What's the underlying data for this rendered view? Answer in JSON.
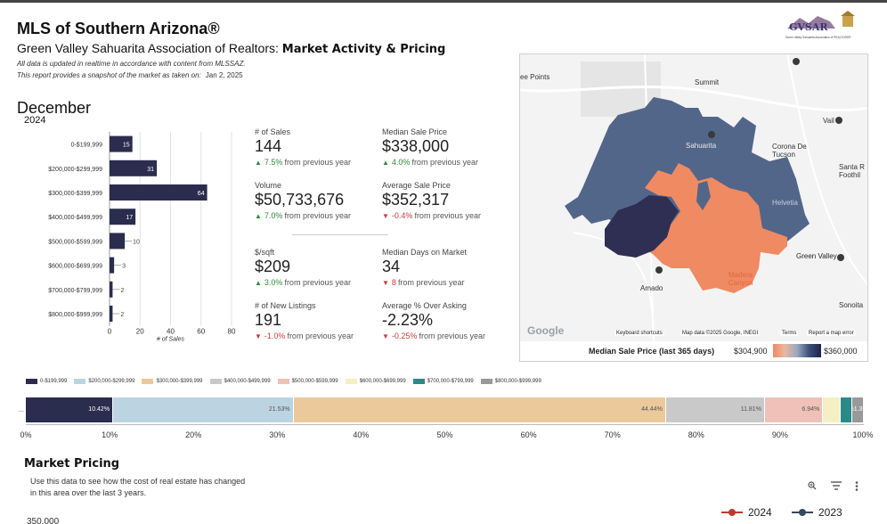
{
  "header": {
    "title": "MLS of Southern Arizona®",
    "subtitle_plain": "Green Valley Sahuarita Association of Realtors: ",
    "subtitle_bold": "Market Activity & Pricing",
    "note1": "All data is updated in realtime in accordance with content from MLSSAZ.",
    "note2": "This report provides a snapshot of the market as taken on:",
    "snapshot_date": "Jan 2, 2025",
    "logo_text": "GVSAR",
    "logo_subtext": "Green Valley Sahuarita Association of REALTORS®"
  },
  "period": {
    "month": "December",
    "year": "2024"
  },
  "chart_data": [
    {
      "type": "bar",
      "orientation": "horizontal",
      "categories": [
        "0-$199,999",
        "$200,000-$299,999",
        "$300,000-$399,999",
        "$400,000-$499,999",
        "$500,000-$599,999",
        "$600,000-$699,999",
        "$700,000-$799,999",
        "$800,000-$999,999"
      ],
      "values": [
        15,
        31,
        64,
        17,
        10,
        3,
        2,
        2
      ],
      "xlabel": "# of Sales",
      "xlim": [
        0,
        80
      ],
      "xticks": [
        0,
        20,
        40,
        60,
        80
      ],
      "color": "#2b2d4e",
      "grid": true
    },
    {
      "type": "bar",
      "orientation": "horizontal-stacked-100",
      "categories": [
        "..."
      ],
      "series": [
        {
          "name": "0-$199,999",
          "values": [
            10.42
          ],
          "label": "10.42%",
          "color": "#2b2d4e"
        },
        {
          "name": "$200,000-$299,999",
          "values": [
            21.53
          ],
          "label": "21.53%",
          "color": "#bcd3e2"
        },
        {
          "name": "$300,000-$399,999",
          "values": [
            44.44
          ],
          "label": "44.44%",
          "color": "#ecc99b"
        },
        {
          "name": "$400,000-$499,999",
          "values": [
            11.81
          ],
          "label": "11.81%",
          "color": "#c9c9c9"
        },
        {
          "name": "$500,000-$599,999",
          "values": [
            6.94
          ],
          "label": "6.94%",
          "color": "#efc1b9"
        },
        {
          "name": "$600,000-$699,999",
          "values": [
            2.08
          ],
          "label": "",
          "color": "#f5f0c4"
        },
        {
          "name": "$700,000-$799,999",
          "values": [
            1.39
          ],
          "label": "",
          "color": "#2a8a8a"
        },
        {
          "name": "$800,000-$999,999",
          "values": [
            1.39
          ],
          "label": "2.08%1.39%1.39%",
          "color": "#999999"
        }
      ],
      "xlim": [
        0,
        100
      ],
      "xticks": [
        "0%",
        "10%",
        "20%",
        "30%",
        "40%",
        "50%",
        "60%",
        "70%",
        "80%",
        "90%",
        "100%"
      ],
      "legend": "top"
    }
  ],
  "metrics": [
    {
      "label": "# of Sales",
      "value": "144",
      "pct": "7.5%",
      "text": "from previous year",
      "dir": "up"
    },
    {
      "label": "Median Sale Price",
      "value": "$338,000",
      "pct": "4.0%",
      "text": "from previous year",
      "dir": "up"
    },
    {
      "label": "Volume",
      "value": "$50,733,676",
      "pct": "7.0%",
      "text": "from previous year",
      "dir": "up"
    },
    {
      "label": "Average Sale Price",
      "value": "$352,317",
      "pct": "-0.4%",
      "text": "from previous year",
      "dir": "down"
    },
    {
      "label": "$/sqft",
      "value": "$209",
      "pct": "3.0%",
      "text": "from previous year",
      "dir": "up"
    },
    {
      "label": "Median Days on Market",
      "value": "34",
      "pct": "8",
      "text": "from previous year",
      "dir": "down"
    },
    {
      "label": "# of New Listings",
      "value": "191",
      "pct": "-1.0%",
      "text": "from previous year",
      "dir": "down"
    },
    {
      "label": "Average % Over Asking",
      "value": "-2.23%",
      "pct": "-0.25%",
      "text": "from previous year",
      "dir": "down"
    }
  ],
  "map": {
    "places": [
      "ee Points",
      "Summit",
      "Sahuarita",
      "Corona De Tucson",
      "Vail",
      "Santa R Foothil",
      "Helvetia",
      "Green Valley",
      "Madera Canyon",
      "Amado",
      "Sonoita"
    ],
    "controls": [
      "Keyboard shortcuts",
      "Map data ©2025 Google, INEGI",
      "Terms",
      "Report a map error"
    ],
    "google_logo": "Google",
    "legend_title": "Median Sale Price (last 365 days)",
    "legend_min": "$304,900",
    "legend_max": "$360,000",
    "colors": {
      "low": "#ef8a62",
      "high": "#22224a"
    }
  },
  "pricing": {
    "title": "Market Pricing",
    "description": "Use this data to see how the cost of real estate has changed in this area over the last 3 years.",
    "y_first_tick": "350,000",
    "legend": [
      {
        "label": "2024",
        "color": "#c0392b"
      },
      {
        "label": "2023",
        "color": "#34495e"
      }
    ],
    "icons": [
      "zoom-icon",
      "filter-icon",
      "more-icon"
    ]
  }
}
